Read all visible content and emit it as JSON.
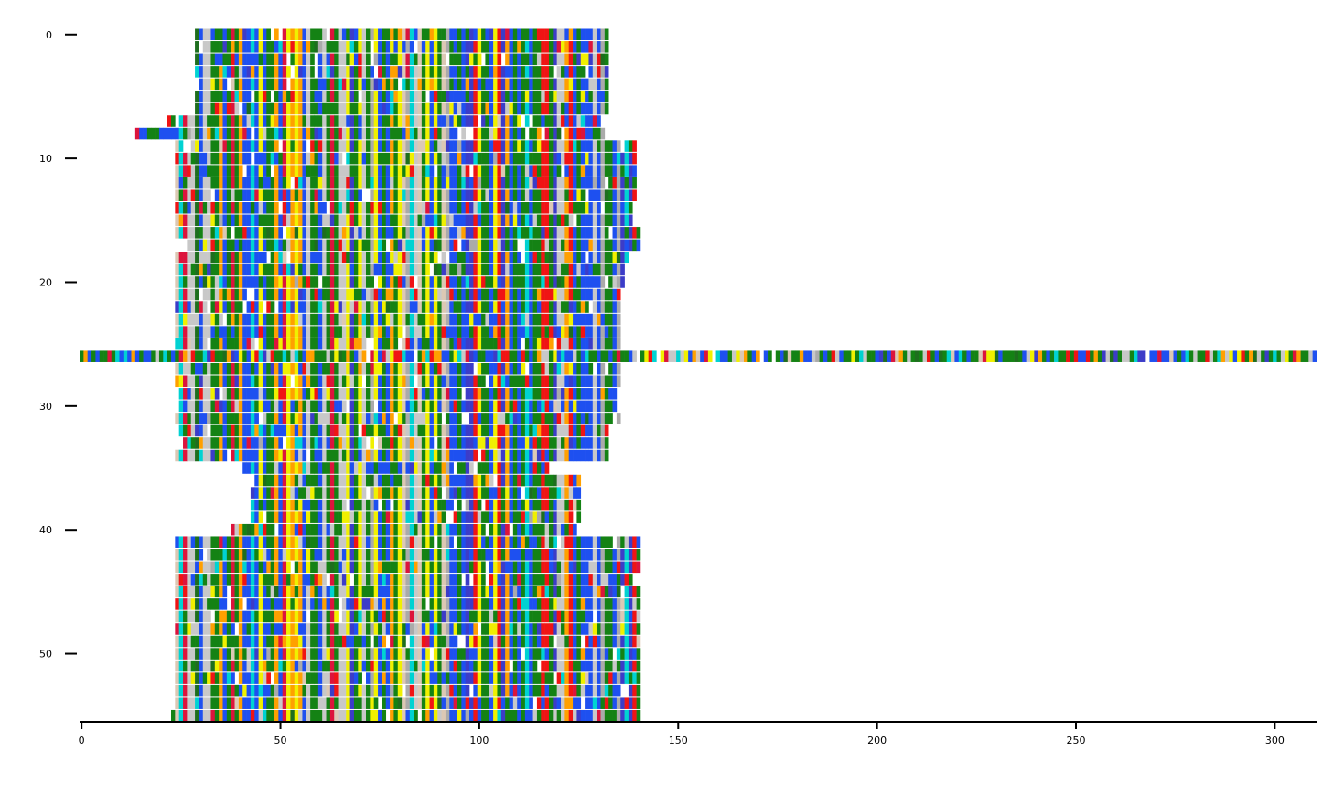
{
  "chart_data": {
    "type": "heatmap",
    "title": "",
    "xlabel": "",
    "ylabel": "",
    "xlim": [
      -0.5,
      310.5
    ],
    "ylim": [
      55.5,
      -0.5
    ],
    "x_ticks": [
      0,
      50,
      100,
      150,
      200,
      250,
      300
    ],
    "y_ticks": [
      0,
      10,
      20,
      30,
      40,
      50
    ],
    "x_tick_labels": [
      "0",
      "50",
      "100",
      "150",
      "200",
      "250",
      "300"
    ],
    "y_tick_labels": [
      "0",
      "10",
      "20",
      "30",
      "40",
      "50"
    ],
    "grid": false,
    "legend": "none",
    "cell_color_palette": [
      "#148214",
      "#1e50f0",
      "#00d2d2",
      "#f0f000",
      "#f01414",
      "#ffa000",
      "#c8c8c8",
      "#3c3cc8",
      "#dc143c",
      "#dcc8b4",
      "#1e6e1e",
      "#aaaaaa"
    ],
    "palette_weights": [
      30,
      22,
      8,
      7,
      8,
      7,
      9,
      5,
      3,
      2,
      2,
      2
    ],
    "rows": [
      {
        "row": 0,
        "start": 29,
        "end": 132
      },
      {
        "row": 1,
        "start": 29,
        "end": 132
      },
      {
        "row": 2,
        "start": 29,
        "end": 132
      },
      {
        "row": 3,
        "start": 29,
        "end": 132
      },
      {
        "row": 4,
        "start": 29,
        "end": 132
      },
      {
        "row": 5,
        "start": 29,
        "end": 132
      },
      {
        "row": 6,
        "start": 29,
        "end": 132
      },
      {
        "row": 7,
        "start": 22,
        "end": 130
      },
      {
        "row": 8,
        "start": 14,
        "end": 131
      },
      {
        "row": 9,
        "start": 24,
        "end": 139
      },
      {
        "row": 10,
        "start": 24,
        "end": 139
      },
      {
        "row": 11,
        "start": 24,
        "end": 139
      },
      {
        "row": 12,
        "start": 24,
        "end": 139
      },
      {
        "row": 13,
        "start": 24,
        "end": 139
      },
      {
        "row": 14,
        "start": 24,
        "end": 139
      },
      {
        "row": 15,
        "start": 24,
        "end": 138
      },
      {
        "row": 16,
        "start": 24,
        "end": 140
      },
      {
        "row": 17,
        "start": 27,
        "end": 140
      },
      {
        "row": 18,
        "start": 24,
        "end": 137
      },
      {
        "row": 19,
        "start": 24,
        "end": 136
      },
      {
        "row": 20,
        "start": 24,
        "end": 136
      },
      {
        "row": 21,
        "start": 24,
        "end": 135
      },
      {
        "row": 22,
        "start": 24,
        "end": 135
      },
      {
        "row": 23,
        "start": 24,
        "end": 135
      },
      {
        "row": 24,
        "start": 24,
        "end": 135
      },
      {
        "row": 25,
        "start": 24,
        "end": 135
      },
      {
        "row": 26,
        "start": 0,
        "end": 310
      },
      {
        "row": 27,
        "start": 24,
        "end": 135
      },
      {
        "row": 28,
        "start": 24,
        "end": 135
      },
      {
        "row": 29,
        "start": 24,
        "end": 134
      },
      {
        "row": 30,
        "start": 24,
        "end": 134
      },
      {
        "row": 31,
        "start": 24,
        "end": 135
      },
      {
        "row": 32,
        "start": 25,
        "end": 132
      },
      {
        "row": 33,
        "start": 25,
        "end": 132
      },
      {
        "row": 34,
        "start": 24,
        "end": 132
      },
      {
        "row": 35,
        "start": 41,
        "end": 117
      },
      {
        "row": 36,
        "start": 44,
        "end": 125
      },
      {
        "row": 37,
        "start": 43,
        "end": 125
      },
      {
        "row": 38,
        "start": 43,
        "end": 125
      },
      {
        "row": 39,
        "start": 43,
        "end": 125
      },
      {
        "row": 40,
        "start": 37,
        "end": 124
      },
      {
        "row": 41,
        "start": 24,
        "end": 140
      },
      {
        "row": 42,
        "start": 24,
        "end": 140
      },
      {
        "row": 43,
        "start": 24,
        "end": 140
      },
      {
        "row": 44,
        "start": 24,
        "end": 140
      },
      {
        "row": 45,
        "start": 24,
        "end": 140
      },
      {
        "row": 46,
        "start": 24,
        "end": 140
      },
      {
        "row": 47,
        "start": 24,
        "end": 140
      },
      {
        "row": 48,
        "start": 24,
        "end": 140
      },
      {
        "row": 49,
        "start": 24,
        "end": 140
      },
      {
        "row": 50,
        "start": 24,
        "end": 140
      },
      {
        "row": 51,
        "start": 24,
        "end": 140
      },
      {
        "row": 52,
        "start": 24,
        "end": 140
      },
      {
        "row": 53,
        "start": 24,
        "end": 140
      },
      {
        "row": 54,
        "start": 24,
        "end": 140
      },
      {
        "row": 55,
        "start": 23,
        "end": 140
      }
    ]
  }
}
